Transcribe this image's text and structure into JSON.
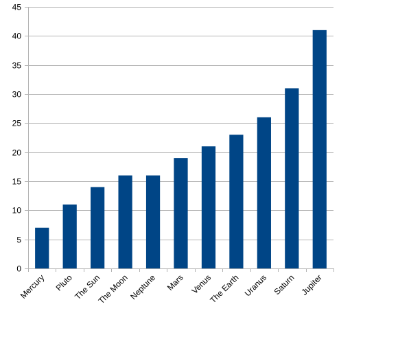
{
  "chart_data": {
    "type": "bar",
    "categories": [
      "Mercury",
      "Pluto",
      "The Sun",
      "The Moon",
      "Neptune",
      "Mars",
      "Venus",
      "The Earth",
      "Uranus",
      "Saturn",
      "Jupiter"
    ],
    "values": [
      7,
      11,
      14,
      16,
      16,
      19,
      21,
      23,
      26,
      31,
      41
    ],
    "title": "",
    "xlabel": "",
    "ylabel": "",
    "ylim": [
      0,
      45
    ],
    "yticks": [
      0,
      5,
      10,
      15,
      20,
      25,
      30,
      35,
      40,
      45
    ],
    "grid": true,
    "legend": "none",
    "bar_color": "#004586"
  }
}
